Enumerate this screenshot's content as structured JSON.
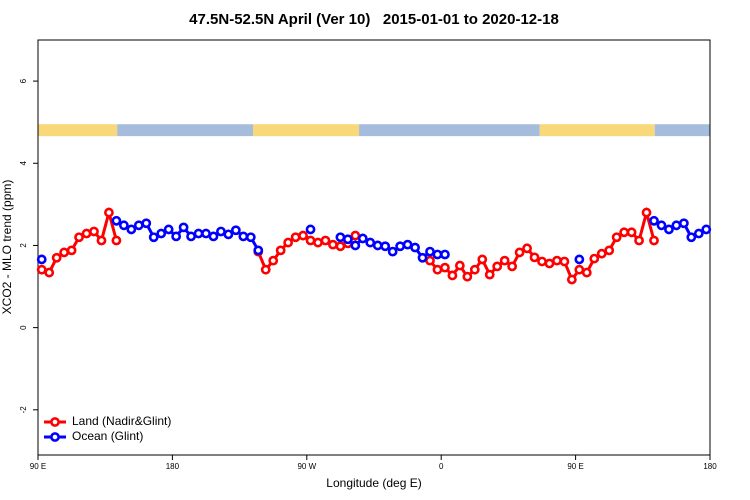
{
  "chart_data": {
    "type": "line",
    "title": "47.5N-52.5N April (Ver 10)   2015-01-01 to 2020-12-18",
    "x_label": "Longitude (deg E)",
    "y_label": "XCO2 - MLO trend (ppm)",
    "xlim": [
      90,
      540
    ],
    "ylim": [
      -3.1,
      7.0
    ],
    "xticks": [
      {
        "value": 90,
        "label": "90 E"
      },
      180,
      {
        "value": 270,
        "label": "90 W"
      },
      {
        "value": 360,
        "label": "0"
      },
      {
        "value": 450,
        "label": "90 E"
      },
      {
        "value": 540,
        "label": "180"
      }
    ],
    "yticks": [
      -2,
      0,
      2,
      4,
      6
    ],
    "legend": "bottom-left",
    "mask_ylim": [
      4.66,
      4.95
    ],
    "mask": [
      {
        "from": 90,
        "to": 143,
        "color": "#f8d878"
      },
      {
        "from": 143,
        "to": 234,
        "color": "#a6bcdc"
      },
      {
        "from": 234,
        "to": 305,
        "color": "#f8d878"
      },
      {
        "from": 305,
        "to": 426,
        "color": "#a6bcdc"
      },
      {
        "from": 426,
        "to": 503,
        "color": "#f8d878"
      },
      {
        "from": 503,
        "to": 540,
        "color": "#a6bcdc"
      }
    ],
    "x": [
      92.5,
      97.5,
      102.5,
      107.5,
      112.5,
      117.5,
      122.5,
      127.5,
      132.5,
      137.5,
      142.5,
      147.5,
      152.5,
      157.5,
      162.5,
      167.5,
      172.5,
      177.5,
      182.5,
      187.5,
      192.5,
      197.5,
      202.5,
      207.5,
      212.5,
      217.5,
      222.5,
      227.5,
      232.5,
      237.5,
      242.5,
      247.5,
      252.5,
      257.5,
      262.5,
      267.5,
      272.5,
      277.5,
      282.5,
      287.5,
      292.5,
      297.5,
      302.5,
      307.5,
      312.5,
      317.5,
      322.5,
      327.5,
      332.5,
      337.5,
      342.5,
      347.5,
      352.5,
      357.5,
      362.5,
      367.5,
      372.5,
      377.5,
      382.5,
      387.5,
      392.5,
      397.5,
      402.5,
      407.5,
      412.5,
      417.5,
      422.5,
      427.5,
      432.5,
      437.5,
      442.5,
      447.5,
      452.5,
      457.5,
      462.5,
      467.5,
      472.5,
      477.5,
      482.5,
      487.5,
      492.5,
      497.5,
      502.5,
      507.5,
      512.5,
      517.5,
      522.5,
      527.5,
      532.5,
      537.5
    ],
    "series": [
      {
        "name": "Land (Nadir&Glint)",
        "color": "#ff0000",
        "values": [
          1.41,
          1.34,
          1.7,
          1.83,
          1.88,
          2.2,
          2.29,
          2.34,
          2.12,
          2.8,
          2.12,
          null,
          null,
          null,
          null,
          null,
          null,
          null,
          null,
          null,
          null,
          null,
          null,
          null,
          null,
          null,
          null,
          null,
          null,
          1.85,
          1.41,
          1.63,
          1.88,
          2.07,
          2.2,
          2.24,
          2.12,
          2.07,
          2.12,
          2.02,
          1.98,
          2.05,
          2.24,
          null,
          null,
          null,
          null,
          null,
          null,
          null,
          null,
          null,
          1.63,
          1.41,
          1.46,
          1.27,
          1.51,
          1.24,
          1.41,
          1.66,
          1.29,
          1.49,
          1.63,
          1.49,
          1.83,
          1.93,
          1.71,
          1.61,
          1.56,
          1.63,
          1.61,
          1.17,
          1.41,
          1.34,
          1.68,
          1.8,
          1.88,
          2.2,
          2.32,
          2.32,
          2.12,
          2.8,
          2.12,
          null,
          null,
          null,
          null,
          null,
          null,
          null
        ]
      },
      {
        "name": "Ocean (Glint)",
        "color": "#0000ff",
        "values": [
          1.66,
          null,
          null,
          null,
          null,
          null,
          null,
          null,
          null,
          null,
          2.6,
          2.49,
          2.39,
          2.49,
          2.54,
          2.2,
          2.29,
          2.39,
          2.22,
          2.44,
          2.22,
          2.29,
          2.29,
          2.22,
          2.34,
          2.27,
          2.37,
          2.22,
          2.2,
          1.88,
          null,
          null,
          null,
          null,
          null,
          null,
          2.39,
          null,
          null,
          null,
          2.2,
          2.15,
          2.0,
          2.17,
          2.07,
          2.0,
          1.98,
          1.85,
          1.98,
          2.02,
          1.95,
          1.7,
          1.85,
          1.78,
          1.78,
          null,
          null,
          null,
          null,
          null,
          null,
          null,
          null,
          null,
          null,
          null,
          null,
          null,
          null,
          null,
          null,
          null,
          1.66,
          null,
          null,
          null,
          null,
          null,
          null,
          null,
          null,
          null,
          2.6,
          2.49,
          2.39,
          2.49,
          2.54,
          2.2,
          2.29,
          2.39
        ]
      }
    ]
  }
}
